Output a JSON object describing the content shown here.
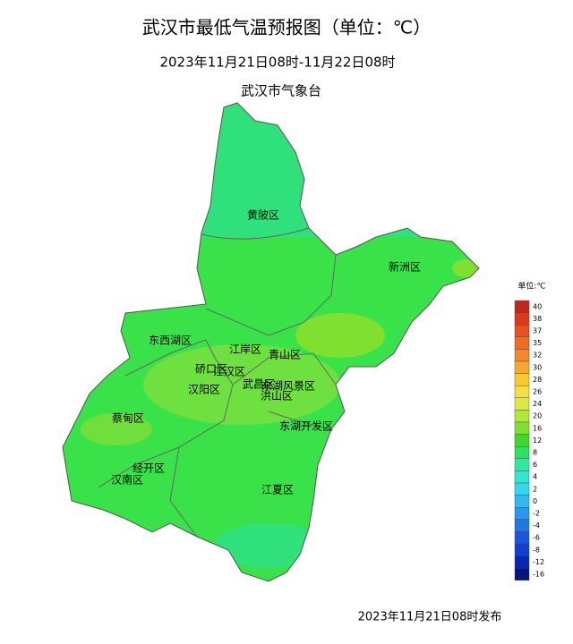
{
  "header": {
    "title": "武汉市最低气温预报图（单位：℃）",
    "subtitle": "2023年11月21日08时-11月22日08时",
    "issuer": "武汉市气象台"
  },
  "districts": [
    "黄陂区",
    "新洲区",
    "东西湖区",
    "江岸区",
    "青山区",
    "硚口区",
    "江汉区",
    "汉阳区",
    "武昌区",
    "东湖风景区",
    "洪山区",
    "蔡甸区",
    "东湖开发区",
    "经开区",
    "汉南区",
    "江夏区"
  ],
  "legend": {
    "title": "单位:℃",
    "items": [
      {
        "label": 40,
        "color": "#c0281e"
      },
      {
        "label": 38,
        "color": "#d93a1e"
      },
      {
        "label": 37,
        "color": "#e8501e"
      },
      {
        "label": 35,
        "color": "#f06a20"
      },
      {
        "label": 32,
        "color": "#f5882a"
      },
      {
        "label": 30,
        "color": "#f8a830"
      },
      {
        "label": 28,
        "color": "#f8c830"
      },
      {
        "label": 26,
        "color": "#f0e040"
      },
      {
        "label": 24,
        "color": "#d8ec40"
      },
      {
        "label": 20,
        "color": "#b0e83a"
      },
      {
        "label": 16,
        "color": "#80e030"
      },
      {
        "label": 12,
        "color": "#40d830"
      },
      {
        "label": 8,
        "color": "#30e060"
      },
      {
        "label": 6,
        "color": "#30e8a0"
      },
      {
        "label": 4,
        "color": "#30e8d0"
      },
      {
        "label": 2,
        "color": "#30d8f0"
      },
      {
        "label": 0,
        "color": "#30b8f0"
      },
      {
        "label": -2,
        "color": "#2898f0"
      },
      {
        "label": -4,
        "color": "#2078e8"
      },
      {
        "label": -6,
        "color": "#1858e0"
      },
      {
        "label": -8,
        "color": "#1040d0"
      },
      {
        "label": -12,
        "color": "#0828b0"
      },
      {
        "label": -16,
        "color": "#001880"
      }
    ]
  },
  "footer": "2023年11月21日08时发布"
}
